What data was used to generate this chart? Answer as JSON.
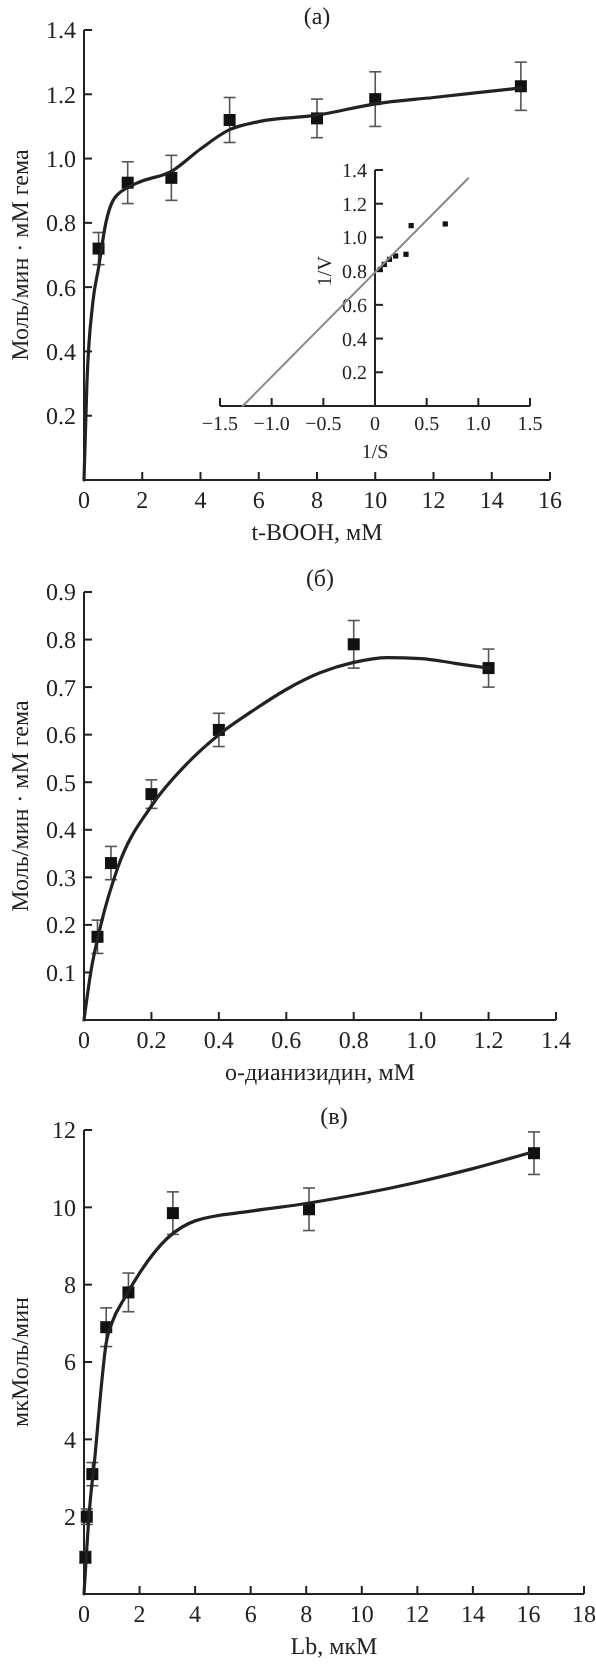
{
  "chart_data": [
    {
      "type": "scatter",
      "title": "(а)",
      "xlabel": "t-BOOH, мМ",
      "ylabel": "Моль/мин · мМ гема",
      "xlim": [
        0,
        16
      ],
      "ylim": [
        0,
        1.4
      ],
      "xticks": [
        0,
        2,
        4,
        6,
        8,
        10,
        12,
        14,
        16
      ],
      "yticks": [
        0.2,
        0.4,
        0.6,
        0.8,
        {
          "value": 1,
          "label": "1.0"
        },
        1.2,
        1.4
      ],
      "marker": "square",
      "series": [
        {
          "color": "#111111",
          "x": [
            0.5,
            1.5,
            3,
            5,
            8,
            10,
            15
          ],
          "values": [
            0.72,
            0.925,
            0.94,
            1.12,
            1.125,
            1.185,
            1.225
          ],
          "errors": [
            0.05,
            0.065,
            0.07,
            0.07,
            0.06,
            0.085,
            0.075
          ]
        },
        {
          "type": "line",
          "color": "#222222",
          "marker": "none",
          "line_style": "solid",
          "x": [
            0,
            0.1,
            0.3,
            0.5,
            0.75,
            1,
            1.5,
            2,
            3,
            4,
            5,
            6,
            8,
            10,
            12,
            15
          ],
          "values": [
            0,
            0.3,
            0.55,
            0.66,
            0.8,
            0.87,
            0.91,
            0.93,
            0.96,
            1.03,
            1.09,
            1.115,
            1.135,
            1.17,
            1.19,
            1.22
          ]
        }
      ]
    },
    {
      "type": "scatter",
      "xlabel": "1/S",
      "ylabel": "1/V",
      "xlim": [
        -1.5,
        1.5
      ],
      "ylim": [
        0,
        1.4
      ],
      "xticks": [
        {
          "value": -1.5,
          "label": "−1.5"
        },
        {
          "value": -1,
          "label": "−1.0"
        },
        {
          "value": -0.5,
          "label": "−0.5"
        },
        0,
        0.5,
        {
          "value": 1,
          "label": "1.0"
        },
        1.5
      ],
      "yticks": [
        0.2,
        0.4,
        0.6,
        0.8,
        {
          "value": 1,
          "label": "1.0"
        },
        1.2,
        1.4
      ],
      "marker": "square",
      "series": [
        {
          "color": "#111111",
          "x": [
            0.05,
            0.09,
            0.14,
            0.2,
            0.3,
            0.35,
            0.68
          ],
          "values": [
            0.81,
            0.84,
            0.87,
            0.89,
            0.9,
            1.07,
            1.08
          ]
        },
        {
          "type": "line",
          "color": "#888888",
          "marker": "none",
          "line_style": "solid",
          "x": [
            -1.28,
            0.9
          ],
          "values": [
            0,
            1.35
          ]
        }
      ]
    },
    {
      "type": "scatter",
      "title": "(б)",
      "xlabel": "o-дианизидин, мМ",
      "ylabel": "Моль/мин · мМ гема",
      "xlim": [
        0,
        1.4
      ],
      "ylim": [
        0,
        0.9
      ],
      "xticks": [
        0,
        0.2,
        0.4,
        0.6,
        0.8,
        {
          "value": 1,
          "label": "1.0"
        },
        1.2,
        1.4
      ],
      "yticks": [
        0.1,
        0.2,
        0.3,
        0.4,
        0.5,
        0.6,
        0.7,
        0.8,
        0.9
      ],
      "marker": "square",
      "series": [
        {
          "color": "#111111",
          "x": [
            0.04,
            0.08,
            0.2,
            0.4,
            0.8,
            1.2
          ],
          "values": [
            0.175,
            0.33,
            0.475,
            0.61,
            0.79,
            0.74
          ],
          "errors": [
            0.035,
            0.035,
            0.03,
            0.035,
            0.05,
            0.04
          ]
        },
        {
          "type": "line",
          "color": "#222222",
          "marker": "none",
          "line_style": "solid",
          "x": [
            0,
            0.02,
            0.05,
            0.1,
            0.2,
            0.3,
            0.4,
            0.5,
            0.6,
            0.7,
            0.8,
            0.9,
            1.0,
            1.1,
            1.2
          ],
          "values": [
            0,
            0.1,
            0.2,
            0.32,
            0.45,
            0.535,
            0.6,
            0.65,
            0.695,
            0.73,
            0.752,
            0.762,
            0.76,
            0.75,
            0.74
          ]
        }
      ]
    },
    {
      "type": "scatter",
      "title": "(в)",
      "xlabel": "Lb, мкМ",
      "ylabel": "мкМоль/мин",
      "xlim": [
        0,
        18
      ],
      "ylim": [
        0,
        12
      ],
      "xticks": [
        0,
        2,
        4,
        6,
        8,
        10,
        12,
        14,
        16,
        18
      ],
      "yticks": [
        2,
        4,
        6,
        8,
        10,
        12
      ],
      "marker": "square",
      "series": [
        {
          "color": "#111111",
          "x": [
            0.05,
            0.1,
            0.3,
            0.8,
            1.6,
            3.2,
            8.1,
            16.2
          ],
          "values": [
            0.95,
            2.0,
            3.1,
            6.9,
            7.8,
            9.85,
            9.95,
            11.4
          ],
          "errors": [
            0.15,
            0.2,
            0.3,
            0.5,
            0.5,
            0.55,
            0.55,
            0.55
          ]
        },
        {
          "type": "line",
          "color": "#222222",
          "marker": "none",
          "line_style": "solid",
          "x": [
            0,
            0.2,
            0.4,
            0.6,
            0.8,
            1,
            1.5,
            2,
            3,
            4,
            6,
            8,
            10,
            12,
            14,
            16
          ],
          "values": [
            0,
            2.2,
            3.6,
            5.2,
            6.5,
            7.0,
            7.7,
            8.3,
            9.2,
            9.65,
            9.9,
            10.1,
            10.35,
            10.65,
            11.0,
            11.4
          ]
        }
      ]
    }
  ]
}
